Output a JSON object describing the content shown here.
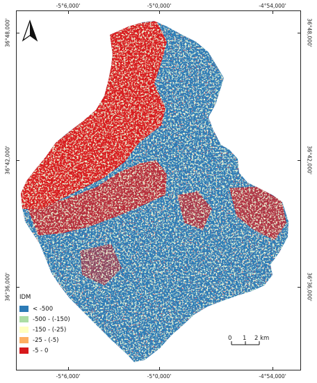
{
  "coords": {
    "top": [
      "-5°6,000'",
      "-5°0,000'",
      "-4°54,000'"
    ],
    "bottom": [
      "-5°6,000'",
      "-5°0,000'",
      "-4°54,000'"
    ],
    "left": [
      "36°48,000'",
      "36°42,000'",
      "36°36,000'"
    ],
    "right": [
      "36°48,000'",
      "36°42,000'",
      "36°36,000'"
    ]
  },
  "north_arrow": {
    "letter": ""
  },
  "legend": {
    "title": "IDM",
    "items": [
      {
        "label": "< -500",
        "color": "#2c7bb6"
      },
      {
        "label": "-500 - (-150)",
        "color": "#abdda4"
      },
      {
        "label": "-150 - (-25)",
        "color": "#ffffbf"
      },
      {
        "label": "-25 - (-5)",
        "color": "#fdae61"
      },
      {
        "label": "-5 - 0",
        "color": "#d7191c"
      }
    ]
  },
  "scale_bar": {
    "labels": [
      "0",
      "1",
      "2 km"
    ]
  },
  "colors": {
    "red": "#d7191c",
    "blue": "#2c7bb6",
    "green": "#abdda4",
    "yellow": "#ffffbf",
    "orange": "#fdae61"
  }
}
